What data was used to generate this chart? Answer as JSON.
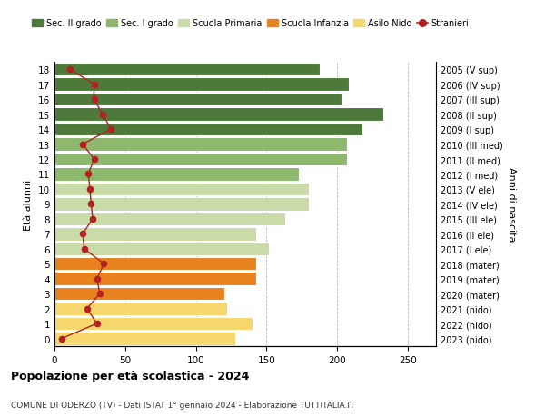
{
  "ages": [
    0,
    1,
    2,
    3,
    4,
    5,
    6,
    7,
    8,
    9,
    10,
    11,
    12,
    13,
    14,
    15,
    16,
    17,
    18
  ],
  "bar_values": [
    128,
    140,
    122,
    120,
    143,
    143,
    152,
    143,
    163,
    180,
    180,
    173,
    207,
    207,
    218,
    233,
    203,
    208,
    188
  ],
  "bar_colors": [
    "#f5d76e",
    "#f5d76e",
    "#f5d76e",
    "#e8821e",
    "#e8821e",
    "#e8821e",
    "#c8dba8",
    "#c8dba8",
    "#c8dba8",
    "#c8dba8",
    "#c8dba8",
    "#8db86e",
    "#8db86e",
    "#8db86e",
    "#4d7a3a",
    "#4d7a3a",
    "#4d7a3a",
    "#4d7a3a",
    "#4d7a3a"
  ],
  "stranieri_values": [
    5,
    30,
    23,
    32,
    30,
    35,
    21,
    20,
    27,
    26,
    25,
    24,
    28,
    20,
    40,
    34,
    28,
    28,
    11
  ],
  "right_labels": [
    "2023 (nido)",
    "2022 (nido)",
    "2021 (nido)",
    "2020 (mater)",
    "2019 (mater)",
    "2018 (mater)",
    "2017 (I ele)",
    "2016 (II ele)",
    "2015 (III ele)",
    "2014 (IV ele)",
    "2013 (V ele)",
    "2012 (I med)",
    "2011 (II med)",
    "2010 (III med)",
    "2009 (I sup)",
    "2008 (II sup)",
    "2007 (III sup)",
    "2006 (IV sup)",
    "2005 (V sup)"
  ],
  "legend_labels": [
    "Sec. II grado",
    "Sec. I grado",
    "Scuola Primaria",
    "Scuola Infanzia",
    "Asilo Nido",
    "Stranieri"
  ],
  "legend_colors": [
    "#4d7a3a",
    "#8db86e",
    "#c8dba8",
    "#e8821e",
    "#f5d76e",
    "#b22222"
  ],
  "ylabel_left": "Età alunni",
  "ylabel_right": "Anni di nascita",
  "title": "Popolazione per età scolastica - 2024",
  "subtitle": "COMUNE DI ODERZO (TV) - Dati ISTAT 1° gennaio 2024 - Elaborazione TUTTITALIA.IT",
  "xlim": [
    0,
    270
  ],
  "xticks": [
    0,
    50,
    100,
    150,
    200,
    250
  ],
  "background_color": "#ffffff",
  "bar_edge_color": "#ffffff"
}
